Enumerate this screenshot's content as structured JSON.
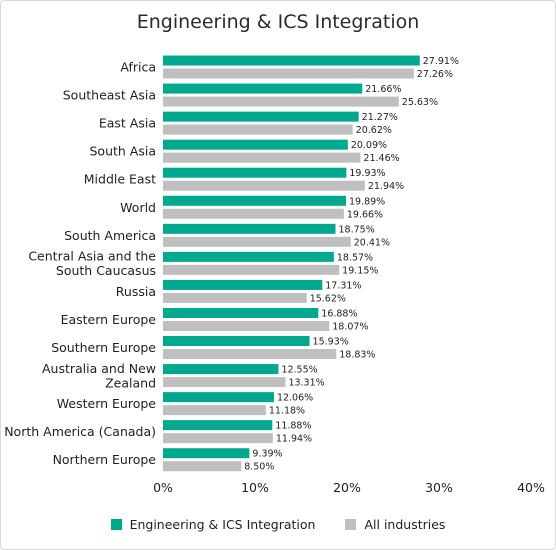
{
  "chart_data": {
    "type": "bar",
    "orientation": "horizontal",
    "title": "Engineering & ICS Integration",
    "categories": [
      "Africa",
      "Southeast Asia",
      "East Asia",
      "South Asia",
      "Middle East",
      "World",
      "South America",
      "Central Asia and the South Caucasus",
      "Russia",
      "Eastern Europe",
      "Southern Europe",
      "Australia and New Zealand",
      "Western Europe",
      "North America (Canada)",
      "Northern Europe"
    ],
    "series": [
      {
        "name": "Engineering & ICS Integration",
        "color": "#00a88e",
        "values": [
          27.91,
          21.66,
          21.27,
          20.09,
          19.93,
          19.89,
          18.75,
          18.57,
          17.31,
          16.88,
          15.93,
          12.55,
          12.06,
          11.88,
          9.39
        ],
        "labels": [
          "27.91%",
          "21.66%",
          "21.27%",
          "20.09%",
          "19.93%",
          "19.89%",
          "18.75%",
          "18.57%",
          "17.31%",
          "16.88%",
          "15.93%",
          "12.55%",
          "12.06%",
          "11.88%",
          "9.39%"
        ]
      },
      {
        "name": "All industries",
        "color": "#bfbfbf",
        "values": [
          27.26,
          25.63,
          20.62,
          21.46,
          21.94,
          19.66,
          20.41,
          19.15,
          15.62,
          18.07,
          18.83,
          13.31,
          11.18,
          11.94,
          8.5
        ],
        "labels": [
          "27.26%",
          "25.63%",
          "20.62%",
          "21.46%",
          "21.94%",
          "19.66%",
          "20.41%",
          "19.15%",
          "15.62%",
          "18.07%",
          "18.83%",
          "13.31%",
          "11.18%",
          "11.94%",
          "8.50%"
        ]
      }
    ],
    "xlim": [
      0,
      40
    ],
    "xticks": [
      "0%",
      "10%",
      "20%",
      "30%",
      "40%"
    ],
    "grid": false,
    "legend_position": "bottom"
  }
}
